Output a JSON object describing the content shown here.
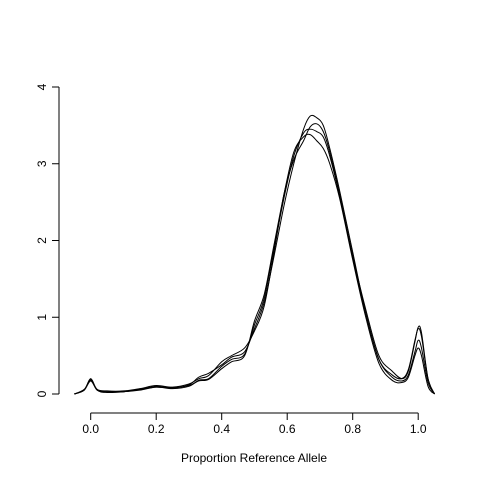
{
  "chart_data": {
    "type": "line",
    "title": "",
    "xlabel": "Proportion Reference Allele",
    "ylabel": "",
    "xlim": [
      -0.05,
      1.05
    ],
    "ylim": [
      0,
      4
    ],
    "xticks": [
      "0.0",
      "0.2",
      "0.4",
      "0.6",
      "0.8",
      "1.0"
    ],
    "yticks": [
      "0",
      "1",
      "2",
      "3",
      "4"
    ],
    "grid": false,
    "legend": "none",
    "line_color": "#000000",
    "series": [
      {
        "x": [
          -0.05,
          -0.02,
          0.0,
          0.02,
          0.05,
          0.1,
          0.15,
          0.2,
          0.25,
          0.3,
          0.33,
          0.36,
          0.4,
          0.43,
          0.47,
          0.5,
          0.53,
          0.56,
          0.59,
          0.62,
          0.65,
          0.67,
          0.69,
          0.71,
          0.73,
          0.76,
          0.8,
          0.84,
          0.88,
          0.92,
          0.95,
          0.97,
          0.99,
          1.0,
          1.01,
          1.03,
          1.05
        ],
        "y": [
          0.0,
          0.05,
          0.19,
          0.05,
          0.03,
          0.03,
          0.06,
          0.1,
          0.08,
          0.12,
          0.22,
          0.27,
          0.38,
          0.48,
          0.55,
          0.85,
          1.2,
          1.8,
          2.45,
          3.0,
          3.45,
          3.62,
          3.6,
          3.5,
          3.2,
          2.65,
          1.85,
          1.05,
          0.45,
          0.25,
          0.2,
          0.32,
          0.7,
          0.85,
          0.75,
          0.2,
          0.0
        ]
      },
      {
        "x": [
          -0.05,
          -0.02,
          0.0,
          0.02,
          0.05,
          0.1,
          0.15,
          0.2,
          0.25,
          0.3,
          0.33,
          0.36,
          0.4,
          0.43,
          0.47,
          0.5,
          0.53,
          0.56,
          0.59,
          0.62,
          0.65,
          0.67,
          0.69,
          0.71,
          0.73,
          0.76,
          0.8,
          0.84,
          0.88,
          0.92,
          0.95,
          0.97,
          0.99,
          1.0,
          1.01,
          1.03,
          1.05
        ],
        "y": [
          0.0,
          0.05,
          0.2,
          0.05,
          0.02,
          0.03,
          0.06,
          0.09,
          0.08,
          0.11,
          0.17,
          0.19,
          0.33,
          0.42,
          0.5,
          0.95,
          1.3,
          1.95,
          2.6,
          3.15,
          3.35,
          3.38,
          3.3,
          3.2,
          3.0,
          2.55,
          1.75,
          1.0,
          0.4,
          0.18,
          0.15,
          0.22,
          0.5,
          0.6,
          0.5,
          0.1,
          0.0
        ]
      },
      {
        "x": [
          -0.05,
          -0.02,
          0.0,
          0.02,
          0.05,
          0.1,
          0.15,
          0.2,
          0.25,
          0.3,
          0.33,
          0.36,
          0.4,
          0.43,
          0.47,
          0.5,
          0.53,
          0.56,
          0.59,
          0.62,
          0.65,
          0.67,
          0.69,
          0.71,
          0.73,
          0.76,
          0.8,
          0.84,
          0.88,
          0.92,
          0.95,
          0.97,
          0.99,
          1.0,
          1.01,
          1.03,
          1.05
        ],
        "y": [
          0.0,
          0.06,
          0.18,
          0.06,
          0.04,
          0.04,
          0.07,
          0.11,
          0.09,
          0.13,
          0.2,
          0.24,
          0.42,
          0.5,
          0.6,
          0.82,
          1.15,
          1.85,
          2.6,
          3.05,
          3.3,
          3.48,
          3.52,
          3.42,
          3.15,
          2.6,
          1.8,
          1.1,
          0.5,
          0.3,
          0.2,
          0.3,
          0.68,
          0.87,
          0.8,
          0.2,
          0.0
        ]
      },
      {
        "x": [
          -0.05,
          -0.02,
          0.0,
          0.02,
          0.05,
          0.1,
          0.15,
          0.2,
          0.25,
          0.3,
          0.33,
          0.36,
          0.4,
          0.43,
          0.47,
          0.5,
          0.53,
          0.56,
          0.59,
          0.62,
          0.65,
          0.67,
          0.69,
          0.71,
          0.73,
          0.76,
          0.8,
          0.84,
          0.88,
          0.92,
          0.95,
          0.97,
          0.99,
          1.0,
          1.01,
          1.03,
          1.05
        ],
        "y": [
          0.0,
          0.05,
          0.17,
          0.05,
          0.03,
          0.03,
          0.05,
          0.09,
          0.07,
          0.1,
          0.18,
          0.2,
          0.36,
          0.45,
          0.52,
          0.9,
          1.25,
          1.9,
          2.55,
          3.1,
          3.4,
          3.45,
          3.42,
          3.35,
          3.1,
          2.58,
          1.78,
          1.05,
          0.45,
          0.22,
          0.17,
          0.25,
          0.55,
          0.7,
          0.6,
          0.15,
          0.0
        ]
      }
    ]
  }
}
